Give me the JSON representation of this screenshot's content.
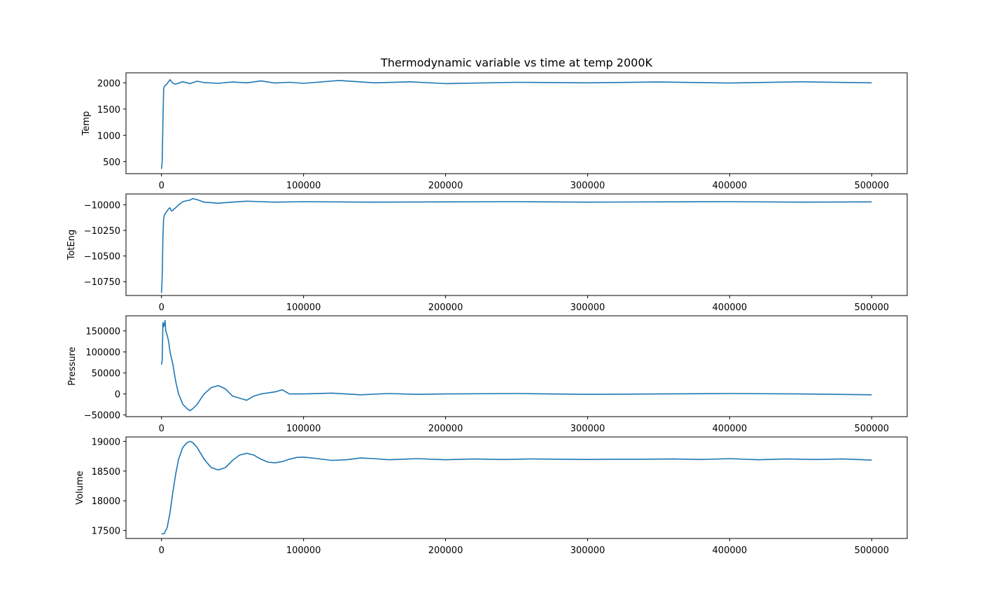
{
  "title": "Thermodynamic variable vs time at temp 2000K",
  "line_color": "#1f77b4",
  "chart_data": [
    {
      "type": "line",
      "ylabel": "Temp",
      "xlim": [
        -25000,
        525000
      ],
      "ylim": [
        270,
        2190
      ],
      "xticks": [
        0,
        100000,
        200000,
        300000,
        400000,
        500000
      ],
      "xtick_labels": [
        "0",
        "100000",
        "200000",
        "300000",
        "400000",
        "500000"
      ],
      "yticks": [
        500,
        1000,
        1500,
        2000
      ],
      "ytick_labels": [
        "500",
        "1000",
        "1500",
        "2000"
      ],
      "series": [
        {
          "x": [
            0,
            500,
            1000,
            1500,
            2000,
            3000,
            4000,
            6000,
            8000,
            10000,
            15000,
            20000,
            25000,
            30000,
            40000,
            50000,
            60000,
            70000,
            80000,
            90000,
            100000,
            125000,
            150000,
            175000,
            200000,
            250000,
            300000,
            350000,
            400000,
            450000,
            500000
          ],
          "y": [
            360,
            500,
            1300,
            1880,
            1930,
            1960,
            1985,
            2060,
            1990,
            1975,
            2020,
            1985,
            2030,
            2005,
            1990,
            2015,
            2000,
            2035,
            1995,
            2010,
            1990,
            2045,
            2000,
            2020,
            1985,
            2010,
            2000,
            2015,
            1995,
            2020,
            2000
          ]
        }
      ]
    },
    {
      "type": "line",
      "ylabel": "TotEng",
      "xlim": [
        -25000,
        525000
      ],
      "ylim": [
        -10885,
        -9895
      ],
      "xticks": [
        0,
        100000,
        200000,
        300000,
        400000,
        500000
      ],
      "xtick_labels": [
        "0",
        "100000",
        "200000",
        "300000",
        "400000",
        "500000"
      ],
      "yticks": [
        -10750,
        -10500,
        -10250,
        -10000
      ],
      "ytick_labels": [
        "−10750",
        "−10500",
        "−10250",
        "−10000"
      ],
      "series": [
        {
          "x": [
            0,
            500,
            1000,
            1500,
            2000,
            3000,
            4000,
            5000,
            6000,
            7000,
            8000,
            9000,
            10000,
            12000,
            15000,
            18000,
            20000,
            22000,
            25000,
            30000,
            35000,
            40000,
            45000,
            50000,
            60000,
            70000,
            80000,
            100000,
            150000,
            200000,
            250000,
            300000,
            350000,
            400000,
            450000,
            500000
          ],
          "y": [
            -10860,
            -10700,
            -10300,
            -10130,
            -10100,
            -10080,
            -10060,
            -10040,
            -10030,
            -10060,
            -10055,
            -10040,
            -10030,
            -10000,
            -9970,
            -9960,
            -9955,
            -9940,
            -9950,
            -9975,
            -9980,
            -9985,
            -9980,
            -9975,
            -9965,
            -9970,
            -9975,
            -9970,
            -9975,
            -9972,
            -9970,
            -9975,
            -9972,
            -9970,
            -9975,
            -9972
          ]
        }
      ]
    },
    {
      "type": "line",
      "ylabel": "Pressure",
      "xlim": [
        -25000,
        525000
      ],
      "ylim": [
        -54000,
        186000
      ],
      "xticks": [
        0,
        100000,
        200000,
        300000,
        400000,
        500000
      ],
      "xtick_labels": [
        "0",
        "100000",
        "200000",
        "300000",
        "400000",
        "500000"
      ],
      "yticks": [
        -50000,
        0,
        50000,
        100000,
        150000
      ],
      "ytick_labels": [
        "−50000",
        "0",
        "50000",
        "100000",
        "150000"
      ],
      "series": [
        {
          "x": [
            0,
            500,
            1000,
            1500,
            2000,
            2500,
            3000,
            4000,
            5000,
            6000,
            8000,
            10000,
            12000,
            15000,
            18000,
            20000,
            22000,
            25000,
            28000,
            30000,
            35000,
            40000,
            45000,
            50000,
            55000,
            60000,
            65000,
            70000,
            80000,
            85000,
            90000,
            100000,
            120000,
            140000,
            160000,
            180000,
            200000,
            250000,
            300000,
            350000,
            400000,
            450000,
            500000
          ],
          "y": [
            70000,
            80000,
            170000,
            160000,
            165000,
            175000,
            150000,
            140000,
            125000,
            100000,
            70000,
            30000,
            0,
            -25000,
            -35000,
            -40000,
            -35000,
            -25000,
            -10000,
            0,
            15000,
            20000,
            12000,
            -5000,
            -10000,
            -15000,
            -5000,
            0,
            5000,
            10000,
            0,
            0,
            2000,
            -2000,
            1000,
            -1000,
            0,
            1000,
            -1000,
            0,
            1000,
            0,
            -2000
          ]
        }
      ]
    },
    {
      "type": "line",
      "ylabel": "Volume",
      "xlim": [
        -25000,
        525000
      ],
      "ylim": [
        17365,
        19075
      ],
      "xticks": [
        0,
        100000,
        200000,
        300000,
        400000,
        500000
      ],
      "xtick_labels": [
        "0",
        "100000",
        "200000",
        "300000",
        "400000",
        "500000"
      ],
      "yticks": [
        17500,
        18000,
        18500,
        19000
      ],
      "ytick_labels": [
        "17500",
        "18000",
        "18500",
        "19000"
      ],
      "series": [
        {
          "x": [
            0,
            2000,
            4000,
            6000,
            8000,
            10000,
            12000,
            15000,
            18000,
            20000,
            22000,
            25000,
            30000,
            35000,
            40000,
            45000,
            50000,
            55000,
            60000,
            65000,
            70000,
            75000,
            80000,
            85000,
            90000,
            95000,
            100000,
            110000,
            120000,
            130000,
            140000,
            150000,
            160000,
            170000,
            180000,
            190000,
            200000,
            220000,
            240000,
            260000,
            280000,
            300000,
            320000,
            340000,
            360000,
            380000,
            400000,
            420000,
            440000,
            460000,
            480000,
            500000
          ],
          "y": [
            17440,
            17450,
            17550,
            17800,
            18150,
            18450,
            18700,
            18900,
            18980,
            19000,
            18980,
            18900,
            18700,
            18560,
            18520,
            18560,
            18680,
            18770,
            18800,
            18770,
            18700,
            18650,
            18640,
            18660,
            18700,
            18730,
            18735,
            18710,
            18680,
            18690,
            18720,
            18710,
            18690,
            18700,
            18710,
            18700,
            18690,
            18705,
            18695,
            18705,
            18700,
            18695,
            18700,
            18700,
            18705,
            18695,
            18710,
            18690,
            18705,
            18695,
            18705,
            18685
          ]
        }
      ]
    }
  ]
}
